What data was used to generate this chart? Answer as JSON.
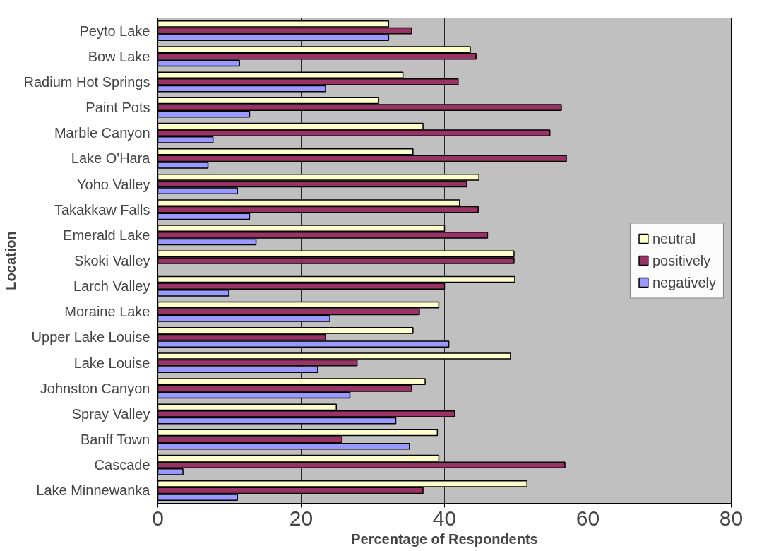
{
  "chart_data": {
    "type": "bar",
    "orientation": "horizontal",
    "xlabel": "Percentage of Respondents",
    "ylabel": "Location",
    "categories": [
      "Peyto Lake",
      "Bow Lake",
      "Radium Hot Springs",
      "Paint Pots",
      "Marble Canyon",
      "Lake O'Hara",
      "Yoho Valley",
      "Takakkaw Falls",
      "Emerald Lake",
      "Skoki Valley",
      "Larch Valley",
      "Moraine Lake",
      "Upper Lake Louise",
      "Lake Louise",
      "Johnston Canyon",
      "Spray Valley",
      "Banff Town",
      "Cascade",
      "Lake Minnewanka"
    ],
    "series": [
      {
        "name": "neutral",
        "color": "#ffffcc",
        "values": [
          32.2,
          43.6,
          34.2,
          30.8,
          37.0,
          35.6,
          44.8,
          42.1,
          40.0,
          49.7,
          49.8,
          39.2,
          35.6,
          49.2,
          37.3,
          24.9,
          39.0,
          39.2,
          51.5
        ]
      },
      {
        "name": "positively",
        "color": "#993366",
        "values": [
          35.4,
          44.4,
          41.9,
          56.3,
          54.7,
          57.0,
          43.1,
          44.7,
          46.0,
          49.7,
          40.0,
          36.5,
          23.4,
          27.8,
          35.4,
          41.4,
          25.7,
          56.8,
          37.0
        ]
      },
      {
        "name": "negatively",
        "color": "#9999ff",
        "values": [
          32.2,
          11.4,
          23.4,
          12.8,
          7.7,
          7.0,
          11.1,
          12.8,
          13.7,
          0,
          9.9,
          24.0,
          40.6,
          22.3,
          26.8,
          33.2,
          35.1,
          3.5,
          11.1
        ]
      }
    ],
    "xlim": [
      0,
      80
    ],
    "xticks": [
      0,
      20,
      40,
      60,
      80
    ],
    "grid": "x",
    "legend": "right"
  }
}
